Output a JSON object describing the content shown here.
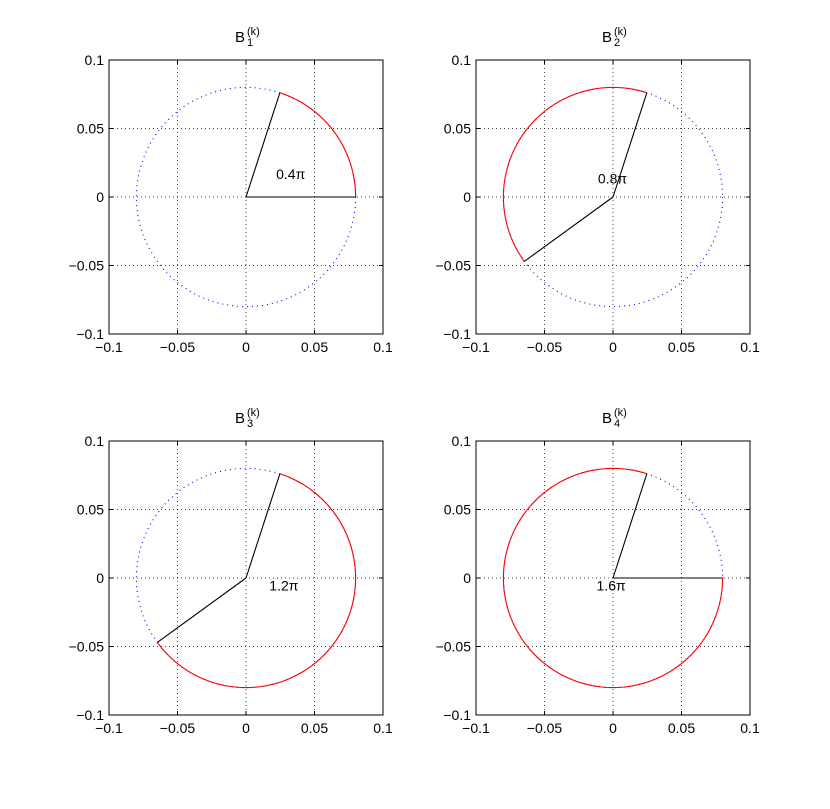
{
  "chart_data": [
    {
      "type": "line",
      "title": "B",
      "title_sub": "1",
      "title_sup": "(k)",
      "xlim": [
        -0.1,
        0.1
      ],
      "ylim": [
        -0.1,
        0.1
      ],
      "xticks": [
        -0.1,
        -0.05,
        0,
        0.05,
        0.1
      ],
      "yticks": [
        -0.1,
        -0.05,
        0,
        0.05,
        0.1
      ],
      "xtick_labels": [
        "−0.1",
        "−0.05",
        "0",
        "0.05",
        "0.1"
      ],
      "ytick_labels": [
        "−0.1",
        "−0.05",
        "0",
        "0.05",
        "0.1"
      ],
      "grid": true,
      "radius": 0.08,
      "arc_start_pi": 0,
      "arc_end_pi": 0.4,
      "arc_color": "#ff0000",
      "circle_color": "#0000ff",
      "line_color": "#000000",
      "annotation": "0.4π",
      "annotation_pos": [
        0.022,
        0.013
      ]
    },
    {
      "type": "line",
      "title": "B",
      "title_sub": "2",
      "title_sup": "(k)",
      "xlim": [
        -0.1,
        0.1
      ],
      "ylim": [
        -0.1,
        0.1
      ],
      "xticks": [
        -0.1,
        -0.05,
        0,
        0.05,
        0.1
      ],
      "yticks": [
        -0.1,
        -0.05,
        0,
        0.05,
        0.1
      ],
      "xtick_labels": [
        "−0.1",
        "−0.05",
        "0",
        "0.05",
        "0.1"
      ],
      "ytick_labels": [
        "−0.1",
        "−0.05",
        "0",
        "0.05",
        "0.1"
      ],
      "grid": true,
      "radius": 0.08,
      "arc_start_pi": 0.4,
      "arc_end_pi": 1.2,
      "arc_color": "#ff0000",
      "circle_color": "#0000ff",
      "line_color": "#000000",
      "annotation": "0.8π",
      "annotation_pos": [
        -0.011,
        0.01
      ]
    },
    {
      "type": "line",
      "title": "B",
      "title_sub": "3",
      "title_sup": "(k)",
      "xlim": [
        -0.1,
        0.1
      ],
      "ylim": [
        -0.1,
        0.1
      ],
      "xticks": [
        -0.1,
        -0.05,
        0,
        0.05,
        0.1
      ],
      "yticks": [
        -0.1,
        -0.05,
        0,
        0.05,
        0.1
      ],
      "xtick_labels": [
        "−0.1",
        "−0.05",
        "0",
        "0.05",
        "0.1"
      ],
      "ytick_labels": [
        "−0.1",
        "−0.05",
        "0",
        "0.05",
        "0.1"
      ],
      "grid": true,
      "radius": 0.08,
      "arc_start_pi": 1.2,
      "arc_end_pi": 2.4,
      "arc_color": "#ff0000",
      "circle_color": "#0000ff",
      "line_color": "#000000",
      "annotation": "1.2π",
      "annotation_pos": [
        0.017,
        -0.009
      ]
    },
    {
      "type": "line",
      "title": "B",
      "title_sub": "4",
      "title_sup": "(k)",
      "xlim": [
        -0.1,
        0.1
      ],
      "ylim": [
        -0.1,
        0.1
      ],
      "xticks": [
        -0.1,
        -0.05,
        0,
        0.05,
        0.1
      ],
      "yticks": [
        -0.1,
        -0.05,
        0,
        0.05,
        0.1
      ],
      "xtick_labels": [
        "−0.1",
        "−0.05",
        "0",
        "0.05",
        "0.1"
      ],
      "ytick_labels": [
        "−0.1",
        "−0.05",
        "0",
        "0.05",
        "0.1"
      ],
      "grid": true,
      "radius": 0.08,
      "arc_start_pi": 0.4,
      "arc_end_pi": 2.0,
      "arc_color": "#ff0000",
      "circle_color": "#0000ff",
      "line_color": "#000000",
      "annotation": "1.6π",
      "annotation_pos": [
        -0.012,
        -0.009
      ]
    }
  ]
}
